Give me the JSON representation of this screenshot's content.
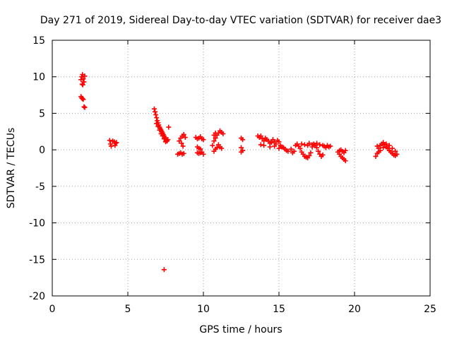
{
  "chart_data": {
    "type": "scatter",
    "title": "Day 271 of 2019, Sidereal Day-to-day VTEC variation (SDTVAR) for receiver dae3",
    "xlabel": "GPS time / hours",
    "ylabel": "SDTVAR / TECUs",
    "xlim": [
      0,
      25
    ],
    "ylim": [
      -20,
      15
    ],
    "xticks": [
      0,
      5,
      10,
      15,
      20,
      25
    ],
    "yticks": [
      -20,
      -15,
      -10,
      -5,
      0,
      5,
      10,
      15
    ],
    "xtick_labels": [
      "0",
      "5",
      "10",
      "15",
      "20",
      "25"
    ],
    "ytick_labels": [
      "-20",
      "-15",
      "-10",
      "-5",
      "0",
      "5",
      "10",
      "15"
    ],
    "grid": true,
    "marker": "plus",
    "series": [
      {
        "name": "SDTVAR",
        "color": "#ff0000",
        "points": [
          [
            1.9,
            9.6
          ],
          [
            1.95,
            10.0
          ],
          [
            2.0,
            10.3
          ],
          [
            2.05,
            9.7
          ],
          [
            2.1,
            9.3
          ],
          [
            2.15,
            10.1
          ],
          [
            1.98,
            9.0
          ],
          [
            2.02,
            8.9
          ],
          [
            1.9,
            7.3
          ],
          [
            1.95,
            7.1
          ],
          [
            2.0,
            7.0
          ],
          [
            2.05,
            6.9
          ],
          [
            2.1,
            5.9
          ],
          [
            2.15,
            5.8
          ],
          [
            3.8,
            1.3
          ],
          [
            3.85,
            0.8
          ],
          [
            3.9,
            0.5
          ],
          [
            4.0,
            1.2
          ],
          [
            4.1,
            1.1
          ],
          [
            4.2,
            0.9
          ],
          [
            4.25,
            1.0
          ],
          [
            4.15,
            0.6
          ],
          [
            6.75,
            5.6
          ],
          [
            6.8,
            5.2
          ],
          [
            6.85,
            4.8
          ],
          [
            6.9,
            4.4
          ],
          [
            6.95,
            4.0
          ],
          [
            7.0,
            3.7
          ],
          [
            7.05,
            3.4
          ],
          [
            7.1,
            3.1
          ],
          [
            7.15,
            2.9
          ],
          [
            7.2,
            2.7
          ],
          [
            7.25,
            2.5
          ],
          [
            7.3,
            2.3
          ],
          [
            7.35,
            2.1
          ],
          [
            7.4,
            1.9
          ],
          [
            7.45,
            1.7
          ],
          [
            7.5,
            1.5
          ],
          [
            7.55,
            1.3
          ],
          [
            7.6,
            1.2
          ],
          [
            7.7,
            3.1
          ],
          [
            7.65,
            1.4
          ],
          [
            6.9,
            3.6
          ],
          [
            7.0,
            3.2
          ],
          [
            7.1,
            2.7
          ],
          [
            7.2,
            2.2
          ],
          [
            7.3,
            1.9
          ],
          [
            7.4,
            1.5
          ],
          [
            7.5,
            1.1
          ],
          [
            7.4,
            -16.4
          ],
          [
            8.3,
            -0.6
          ],
          [
            8.4,
            -0.5
          ],
          [
            8.5,
            -0.4
          ],
          [
            8.6,
            -0.6
          ],
          [
            8.7,
            -0.5
          ],
          [
            8.4,
            1.2
          ],
          [
            8.5,
            1.6
          ],
          [
            8.6,
            1.9
          ],
          [
            8.7,
            2.1
          ],
          [
            8.8,
            1.7
          ],
          [
            8.55,
            0.9
          ],
          [
            8.65,
            0.5
          ],
          [
            9.5,
            1.7
          ],
          [
            9.6,
            1.5
          ],
          [
            9.7,
            1.6
          ],
          [
            9.8,
            1.8
          ],
          [
            9.9,
            1.5
          ],
          [
            10.0,
            1.4
          ],
          [
            9.6,
            0.4
          ],
          [
            9.7,
            0.2
          ],
          [
            9.8,
            0.1
          ],
          [
            9.9,
            -0.3
          ],
          [
            10.0,
            -0.6
          ],
          [
            9.6,
            -0.4
          ],
          [
            9.7,
            -0.5
          ],
          [
            9.8,
            -0.4
          ],
          [
            10.6,
            0.6
          ],
          [
            10.7,
            1.2
          ],
          [
            10.8,
            1.6
          ],
          [
            10.9,
            2.0
          ],
          [
            11.0,
            2.3
          ],
          [
            11.1,
            2.6
          ],
          [
            11.2,
            2.4
          ],
          [
            11.3,
            2.2
          ],
          [
            10.7,
            2.0
          ],
          [
            10.8,
            2.3
          ],
          [
            10.9,
            0.3
          ],
          [
            11.0,
            0.7
          ],
          [
            11.1,
            0.4
          ],
          [
            11.2,
            0.2
          ],
          [
            10.7,
            -0.2
          ],
          [
            10.8,
            0.1
          ],
          [
            12.5,
            1.6
          ],
          [
            12.6,
            1.4
          ],
          [
            12.5,
            0.3
          ],
          [
            12.6,
            -0.1
          ],
          [
            12.5,
            -0.3
          ],
          [
            13.6,
            1.9
          ],
          [
            13.7,
            1.7
          ],
          [
            13.8,
            1.9
          ],
          [
            13.9,
            1.5
          ],
          [
            14.0,
            1.2
          ],
          [
            14.1,
            1.6
          ],
          [
            14.2,
            1.4
          ],
          [
            14.3,
            1.2
          ],
          [
            14.4,
            0.9
          ],
          [
            14.5,
            1.0
          ],
          [
            14.6,
            1.4
          ],
          [
            14.7,
            1.1
          ],
          [
            14.8,
            0.8
          ],
          [
            14.9,
            1.3
          ],
          [
            15.0,
            1.1
          ],
          [
            15.1,
            0.6
          ],
          [
            15.2,
            0.4
          ],
          [
            15.3,
            0.3
          ],
          [
            15.4,
            0.1
          ],
          [
            15.5,
            -0.1
          ],
          [
            15.0,
            0.2
          ],
          [
            14.7,
            0.5
          ],
          [
            14.4,
            0.4
          ],
          [
            13.8,
            0.7
          ],
          [
            14.0,
            0.6
          ],
          [
            15.6,
            -0.2
          ],
          [
            15.8,
            0.1
          ],
          [
            15.9,
            -0.4
          ],
          [
            16.0,
            -0.2
          ],
          [
            16.1,
            0.6
          ],
          [
            16.2,
            0.8
          ],
          [
            16.3,
            0.5
          ],
          [
            16.4,
            0.2
          ],
          [
            16.5,
            -0.3
          ],
          [
            16.6,
            -0.6
          ],
          [
            16.7,
            -0.9
          ],
          [
            16.8,
            -1.0
          ],
          [
            16.9,
            -1.1
          ],
          [
            17.0,
            -0.8
          ],
          [
            17.1,
            -0.4
          ],
          [
            17.2,
            0.4
          ],
          [
            17.3,
            0.8
          ],
          [
            17.4,
            0.6
          ],
          [
            17.5,
            0.3
          ],
          [
            17.6,
            -0.2
          ],
          [
            17.7,
            -0.6
          ],
          [
            17.8,
            -0.9
          ],
          [
            17.9,
            -0.7
          ],
          [
            16.5,
            0.8
          ],
          [
            16.7,
            0.7
          ],
          [
            16.9,
            0.6
          ],
          [
            17.0,
            0.9
          ],
          [
            17.2,
            0.7
          ],
          [
            17.5,
            0.9
          ],
          [
            17.7,
            0.7
          ],
          [
            17.9,
            0.6
          ],
          [
            18.0,
            0.5
          ],
          [
            18.1,
            0.3
          ],
          [
            18.2,
            0.6
          ],
          [
            18.3,
            0.4
          ],
          [
            18.4,
            0.5
          ],
          [
            18.9,
            -0.3
          ],
          [
            19.0,
            -0.6
          ],
          [
            19.1,
            -0.9
          ],
          [
            19.2,
            -1.1
          ],
          [
            19.3,
            -1.3
          ],
          [
            19.4,
            -1.5
          ],
          [
            19.1,
            0.0
          ],
          [
            19.2,
            -0.2
          ],
          [
            19.3,
            -0.4
          ],
          [
            19.4,
            -0.1
          ],
          [
            19.0,
            -0.1
          ],
          [
            21.4,
            -0.9
          ],
          [
            21.5,
            -0.5
          ],
          [
            21.6,
            0.2
          ],
          [
            21.7,
            0.6
          ],
          [
            21.8,
            0.8
          ],
          [
            21.9,
            1.0
          ],
          [
            22.0,
            0.7
          ],
          [
            22.1,
            0.4
          ],
          [
            22.2,
            0.2
          ],
          [
            22.3,
            -0.1
          ],
          [
            22.4,
            -0.3
          ],
          [
            22.5,
            -0.5
          ],
          [
            22.6,
            -0.7
          ],
          [
            22.7,
            -0.8
          ],
          [
            21.5,
            0.5
          ],
          [
            21.7,
            -0.1
          ],
          [
            21.9,
            0.3
          ],
          [
            22.1,
            0.8
          ],
          [
            22.3,
            0.6
          ],
          [
            22.5,
            0.2
          ],
          [
            22.7,
            -0.2
          ],
          [
            21.6,
            -0.3
          ],
          [
            22.8,
            -0.6
          ]
        ]
      }
    ]
  }
}
